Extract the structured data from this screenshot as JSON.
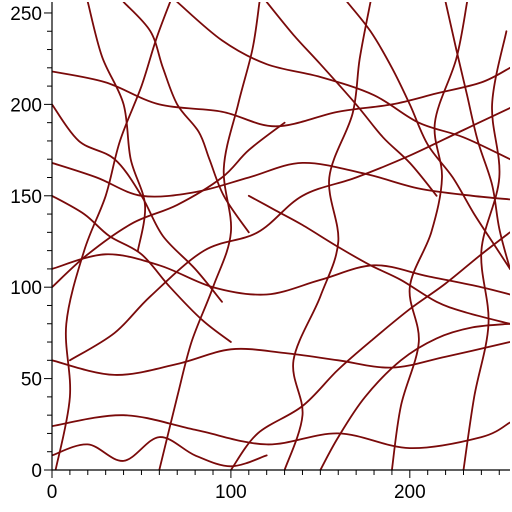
{
  "chart_data": {
    "type": "line",
    "title": "",
    "xlabel": "",
    "ylabel": "",
    "xlim": [
      0,
      256
    ],
    "ylim": [
      0,
      256
    ],
    "grid": false,
    "legend": "none",
    "line_color": "#7a0a0a",
    "x_ticks": [
      0,
      100,
      200
    ],
    "y_ticks": [
      0,
      50,
      100,
      150,
      200,
      250
    ],
    "x_minor_step": 10,
    "y_minor_step": 10,
    "series": [
      {
        "x": [
          0,
          30,
          60,
          95,
          125,
          160,
          190,
          215,
          240,
          256
        ],
        "y": [
          218,
          212,
          200,
          196,
          188,
          196,
          200,
          206,
          212,
          220
        ]
      },
      {
        "x": [
          0,
          25,
          50,
          80,
          110,
          140,
          175,
          205,
          235,
          256
        ],
        "y": [
          168,
          160,
          150,
          152,
          160,
          168,
          162,
          154,
          150,
          148
        ]
      },
      {
        "x": [
          0,
          30,
          60,
          90,
          120,
          150,
          180,
          210,
          240,
          256
        ],
        "y": [
          110,
          118,
          112,
          100,
          96,
          104,
          112,
          106,
          100,
          96
        ]
      },
      {
        "x": [
          0,
          35,
          70,
          100,
          130,
          160,
          190,
          220,
          256
        ],
        "y": [
          60,
          52,
          58,
          66,
          64,
          60,
          56,
          62,
          70
        ]
      },
      {
        "x": [
          0,
          40,
          80,
          120,
          160,
          200,
          240,
          256
        ],
        "y": [
          24,
          30,
          22,
          14,
          20,
          12,
          18,
          26
        ]
      },
      {
        "x": [
          2,
          10,
          8,
          18,
          30,
          38,
          50,
          58,
          66
        ],
        "y": [
          0,
          40,
          80,
          120,
          150,
          180,
          210,
          235,
          256
        ]
      },
      {
        "x": [
          60,
          70,
          78,
          90,
          100,
          96,
          104,
          112,
          116
        ],
        "y": [
          0,
          40,
          70,
          100,
          130,
          165,
          200,
          230,
          256
        ]
      },
      {
        "x": [
          130,
          140,
          135,
          150,
          160,
          155,
          168,
          172,
          178
        ],
        "y": [
          0,
          30,
          60,
          95,
          125,
          160,
          195,
          225,
          256
        ]
      },
      {
        "x": [
          190,
          195,
          205,
          200,
          212,
          218,
          214,
          226,
          232
        ],
        "y": [
          0,
          35,
          70,
          100,
          130,
          160,
          190,
          225,
          256
        ]
      },
      {
        "x": [
          230,
          236,
          244,
          240,
          250,
          246,
          254
        ],
        "y": [
          0,
          40,
          80,
          120,
          160,
          200,
          240
        ]
      },
      {
        "x": [
          0,
          20,
          45,
          70,
          95,
          110,
          130
        ],
        "y": [
          100,
          118,
          135,
          145,
          160,
          175,
          190
        ]
      },
      {
        "x": [
          70,
          95,
          120,
          150,
          180,
          205,
          230,
          256
        ],
        "y": [
          256,
          235,
          222,
          215,
          205,
          190,
          182,
          170
        ]
      },
      {
        "x": [
          10,
          35,
          55,
          85,
          115,
          140,
          170,
          200,
          230,
          256
        ],
        "y": [
          60,
          75,
          95,
          120,
          130,
          150,
          160,
          172,
          186,
          198
        ]
      },
      {
        "x": [
          100,
          115,
          140,
          160,
          180,
          200,
          220,
          240,
          256
        ],
        "y": [
          0,
          20,
          35,
          55,
          72,
          88,
          102,
          118,
          130
        ]
      },
      {
        "x": [
          0,
          15,
          35,
          50,
          62,
          80,
          95
        ],
        "y": [
          200,
          180,
          170,
          150,
          128,
          110,
          92
        ]
      },
      {
        "x": [
          120,
          135,
          150,
          170,
          185,
          200,
          215
        ],
        "y": [
          256,
          238,
          222,
          200,
          182,
          168,
          150
        ]
      },
      {
        "x": [
          150,
          160,
          175,
          195,
          215,
          235,
          256
        ],
        "y": [
          0,
          18,
          40,
          60,
          72,
          78,
          80
        ]
      },
      {
        "x": [
          0,
          20,
          40,
          60,
          80,
          100,
          120
        ],
        "y": [
          8,
          14,
          5,
          18,
          8,
          2,
          8
        ]
      },
      {
        "x": [
          40,
          55,
          62,
          70,
          82,
          88,
          96,
          110
        ],
        "y": [
          256,
          240,
          220,
          200,
          185,
          170,
          150,
          130
        ]
      },
      {
        "x": [
          165,
          178,
          190,
          200,
          210,
          224,
          236,
          248,
          256
        ],
        "y": [
          256,
          240,
          220,
          200,
          178,
          160,
          140,
          122,
          110
        ]
      },
      {
        "x": [
          0,
          18,
          32,
          50,
          66,
          84,
          100
        ],
        "y": [
          150,
          140,
          128,
          118,
          100,
          82,
          70
        ]
      },
      {
        "x": [
          110,
          125,
          140,
          160,
          178,
          195,
          215,
          232,
          256
        ],
        "y": [
          150,
          142,
          134,
          122,
          112,
          104,
          92,
          86,
          80
        ]
      },
      {
        "x": [
          20,
          28,
          40,
          44,
          52,
          48
        ],
        "y": [
          256,
          226,
          200,
          170,
          145,
          120
        ]
      },
      {
        "x": [
          220,
          226,
          232,
          238,
          246,
          250,
          256
        ],
        "y": [
          256,
          230,
          205,
          180,
          156,
          132,
          110
        ]
      }
    ]
  }
}
